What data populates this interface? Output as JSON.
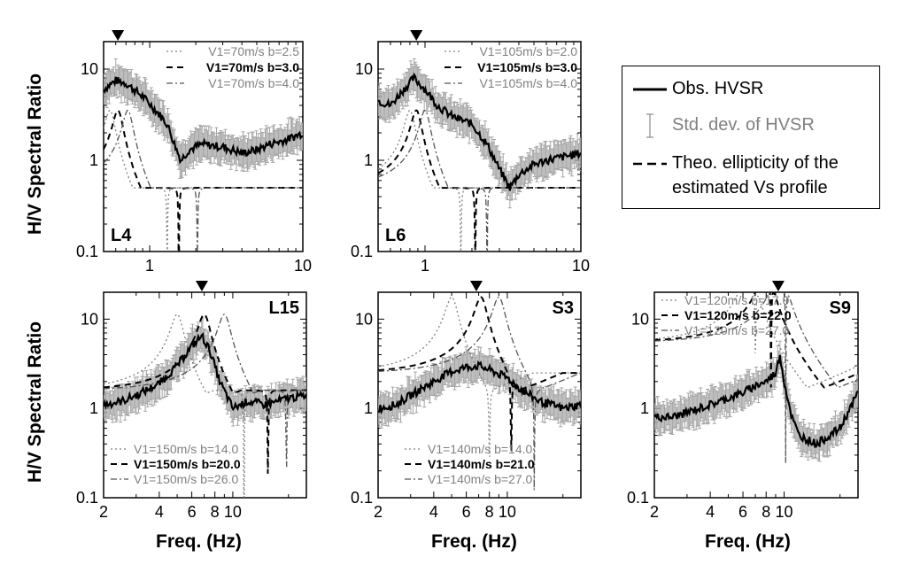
{
  "figure": {
    "ylabel": "H/V Spectral Ratio",
    "xlabel": "Freq. (Hz)"
  },
  "legend": {
    "items": [
      {
        "label": "Obs. HVSR",
        "style": "solid",
        "color": "#000000"
      },
      {
        "label": "Std. dev. of HVSR",
        "style": "errorbar",
        "color": "#8c8c8c"
      },
      {
        "label": "Theo. ellipticity of the",
        "style": "dashed",
        "color": "#000000"
      },
      {
        "label": "estimated Vs profile",
        "style": "none",
        "color": "#000000"
      }
    ]
  },
  "colors": {
    "obs": "#000000",
    "std": "#a6a6a6",
    "gray_text": "#808080"
  },
  "chart_data": [
    {
      "type": "line",
      "name": "L4",
      "xscale": "log",
      "yscale": "log",
      "xlim": [
        0.5,
        10
      ],
      "ylim": [
        0.1,
        20
      ],
      "xticks": [
        1,
        10
      ],
      "xticklabels": [
        "1",
        "10"
      ],
      "yticks": [
        0.1,
        1,
        10
      ],
      "yticklabels": [
        "0.1",
        "1",
        "10"
      ],
      "peak_marker": 0.62,
      "theo_legend": [
        "V1=70m/s b=2.5",
        "V1=70m/s b=3.0",
        "V1=70m/s b=4.0"
      ],
      "theo_peaks": [
        0.55,
        0.62,
        0.72
      ],
      "theo_dips": [
        1.3,
        1.55,
        2.05
      ],
      "theo_low": 1.5,
      "theo_high": 0.5,
      "theo_tail": 0.48,
      "obs": {
        "x": [
          0.5,
          0.6,
          0.7,
          0.9,
          1.1,
          1.3,
          1.5,
          1.6,
          1.8,
          2.2,
          3,
          4,
          5,
          6,
          8,
          10
        ],
        "y": [
          6,
          7.5,
          7,
          5,
          3.5,
          2.5,
          1.3,
          1.0,
          1.3,
          1.5,
          1.4,
          1.2,
          1.3,
          1.5,
          1.7,
          2.0
        ]
      }
    },
    {
      "type": "line",
      "name": "L6",
      "xscale": "log",
      "yscale": "log",
      "xlim": [
        0.5,
        10
      ],
      "ylim": [
        0.1,
        20
      ],
      "xticks": [
        1,
        10
      ],
      "xticklabels": [
        "1",
        "10"
      ],
      "yticks": [
        0.1,
        1,
        10
      ],
      "yticklabels": [
        "0.1",
        "1",
        "10"
      ],
      "peak_marker": 0.88,
      "theo_legend": [
        "V1=105m/s b=2.0",
        "V1=105m/s b=3.0",
        "V1=105m/s b=4.0"
      ],
      "theo_peaks": [
        0.8,
        0.88,
        1.0
      ],
      "theo_dips": [
        1.7,
        2.1,
        2.5
      ],
      "theo_low": 1.5,
      "theo_high": 0.5,
      "theo_tail": 0.48,
      "obs": {
        "x": [
          0.5,
          0.6,
          0.7,
          0.85,
          1.0,
          1.2,
          1.5,
          2.0,
          2.5,
          3.0,
          3.5,
          4.0,
          5,
          6,
          8,
          10
        ],
        "y": [
          4.5,
          4.0,
          5.5,
          8.0,
          6.0,
          4.0,
          3.0,
          2.5,
          1.5,
          0.8,
          0.5,
          0.7,
          0.9,
          1.0,
          1.1,
          1.2
        ]
      }
    },
    {
      "type": "line",
      "name": "L15",
      "xscale": "log",
      "yscale": "log",
      "xlim": [
        2,
        25
      ],
      "ylim": [
        0.1,
        20
      ],
      "xticks": [
        2,
        4,
        6,
        8,
        10
      ],
      "xticklabels": [
        "2",
        "4",
        "6",
        "8",
        "10"
      ],
      "yticks": [
        0.1,
        1,
        10
      ],
      "yticklabels": [
        "0.1",
        "1",
        "10"
      ],
      "peak_marker": 6.8,
      "theo_legend": [
        "V1=150m/s b=14.0",
        "V1=150m/s b=20.0",
        "V1=150m/s b=26.0"
      ],
      "theo_peaks": [
        5.0,
        7.0,
        9.0
      ],
      "theo_dips": [
        11.5,
        15.5,
        19.5
      ],
      "theo_low": 0.85,
      "theo_high": 1.6,
      "theo_tail": 0.45,
      "obs": {
        "x": [
          2,
          2.5,
          3,
          4,
          5,
          6,
          6.8,
          7.5,
          8.5,
          10,
          12,
          15,
          20,
          25
        ],
        "y": [
          1.1,
          1.2,
          1.4,
          1.9,
          3.0,
          5.0,
          6.5,
          4.5,
          2.0,
          1.0,
          1.2,
          1.1,
          1.3,
          1.4
        ]
      }
    },
    {
      "type": "line",
      "name": "S3",
      "xscale": "log",
      "yscale": "log",
      "xlim": [
        2,
        25
      ],
      "ylim": [
        0.1,
        20
      ],
      "xticks": [
        2,
        4,
        6,
        8,
        10
      ],
      "xticklabels": [
        "2",
        "4",
        "6",
        "8",
        "10"
      ],
      "yticks": [
        0.1,
        1,
        10
      ],
      "yticklabels": [
        "0.1",
        "1",
        "10"
      ],
      "peak_marker": 6.8,
      "theo_legend": [
        "V1=140m/s b=14.0",
        "V1=140m/s b=21.0",
        "V1=140m/s b=27.0"
      ],
      "theo_peaks": [
        5.0,
        7.2,
        9.0
      ],
      "theo_dips": [
        8.0,
        10.5,
        14.0
      ],
      "theo_low": 0.85,
      "theo_high": 2.5,
      "theo_tail": 0.45,
      "obs": {
        "x": [
          2,
          2.5,
          3,
          4,
          5,
          6,
          7,
          8,
          10,
          12,
          15,
          20,
          25
        ],
        "y": [
          1.0,
          1.1,
          1.4,
          2.0,
          2.6,
          2.9,
          3.0,
          2.7,
          2.2,
          1.6,
          1.2,
          1.0,
          1.1
        ]
      }
    },
    {
      "type": "line",
      "name": "S9",
      "xscale": "log",
      "yscale": "log",
      "xlim": [
        2,
        25
      ],
      "ylim": [
        0.1,
        20
      ],
      "xticks": [
        2,
        4,
        6,
        8,
        10
      ],
      "xticklabels": [
        "2",
        "4",
        "6",
        "8",
        "10"
      ],
      "yticks": [
        0.1,
        1,
        10
      ],
      "yticklabels": [
        "0.1",
        "1",
        "10"
      ],
      "peak_marker": 9.3,
      "theo_legend": [
        "V1=120m/s b=17.0",
        "V1=120m/s b=22.0",
        "V1=120m/s b=27.0"
      ],
      "theo_peaks": [
        6.5,
        8.0,
        9.5
      ],
      "theo_dips": [
        7.0,
        8.5,
        10.2
      ],
      "theo_low": 0.75,
      "theo_high": 5.5,
      "theo_tail": 0.4,
      "obs": {
        "x": [
          2,
          2.5,
          3,
          4,
          5,
          6,
          7,
          8,
          9,
          9.5,
          10,
          11,
          12,
          15,
          20,
          25
        ],
        "y": [
          0.8,
          0.8,
          0.9,
          1.1,
          1.3,
          1.5,
          1.8,
          2.0,
          2.5,
          4.0,
          2.0,
          0.8,
          0.5,
          0.4,
          0.6,
          1.5
        ]
      }
    }
  ]
}
